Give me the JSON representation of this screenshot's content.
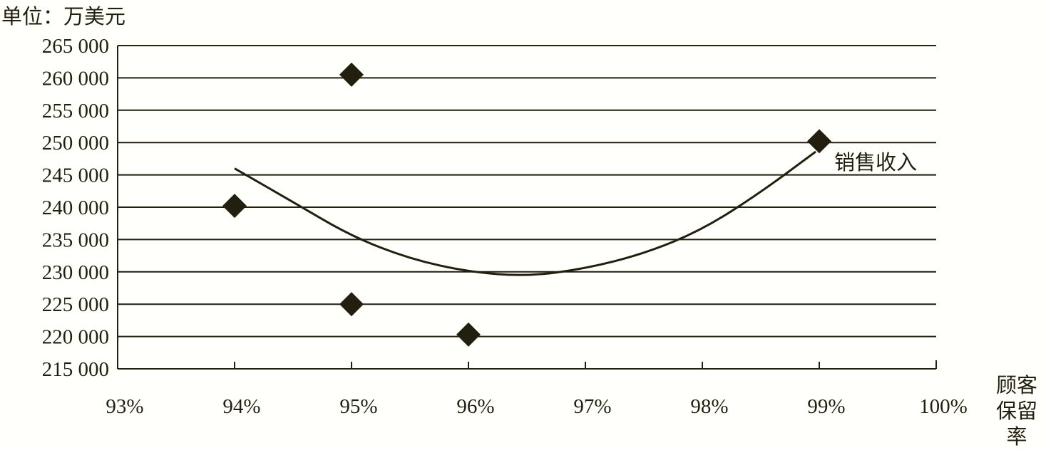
{
  "chart_data": {
    "type": "scatter",
    "unit_label": "单位：万美元",
    "xlabel": "顾客保留率",
    "xlabel_lines": [
      "顾客",
      "保留率"
    ],
    "ylabel": "",
    "xlim": [
      93,
      100
    ],
    "ylim": [
      215000,
      265000
    ],
    "x_ticks": [
      "93%",
      "94%",
      "95%",
      "96%",
      "97%",
      "98%",
      "99%",
      "100%"
    ],
    "y_ticks": [
      "265 000",
      "260 000",
      "255 000",
      "250 000",
      "245 000",
      "240 000",
      "235 000",
      "230 000",
      "225 000",
      "220 000",
      "215 000"
    ],
    "grid": "horizontal",
    "series": [
      {
        "name": "销售收入",
        "marker": "diamond",
        "points": [
          [
            94,
            240200
          ],
          [
            95,
            260500
          ],
          [
            95,
            225000
          ],
          [
            96,
            220300
          ],
          [
            99,
            250200
          ]
        ]
      }
    ],
    "trendline": [
      [
        94,
        246000
      ],
      [
        94.5,
        240800
      ],
      [
        95,
        235500
      ],
      [
        95.5,
        232000
      ],
      [
        96,
        230000
      ],
      [
        96.5,
        229300
      ],
      [
        97,
        230500
      ],
      [
        97.5,
        232800
      ],
      [
        98,
        236500
      ],
      [
        98.5,
        242300
      ],
      [
        98.97,
        248600
      ]
    ],
    "annotation": "销售收入",
    "colors": {
      "ink": "#231f10",
      "background": "#fffffc"
    }
  }
}
